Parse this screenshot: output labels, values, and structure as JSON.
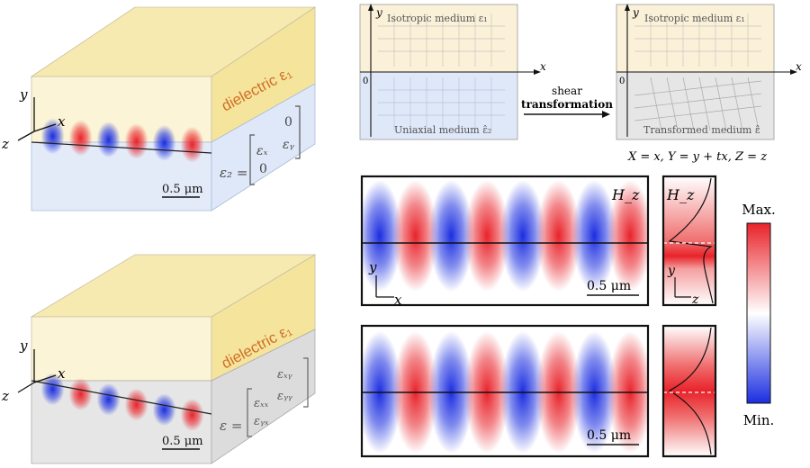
{
  "colors": {
    "field_max": "#e8232a",
    "field_min": "#1b2ee0",
    "dielectric_fill": "#f7eab0",
    "uniaxial_fill": "#dfe8f8",
    "transformed_fill": "#e4e4e4",
    "accent_text": "#d07028"
  },
  "top_block": {
    "dielectric_label": "dielectric ε₁",
    "eps_lhs": "ε₂ =",
    "m11": "εₓ",
    "m12": "0",
    "m21": "0",
    "m22": "εᵧ",
    "scale": "0.5 μm",
    "axis_y": "y",
    "axis_x": "x",
    "axis_z": "z"
  },
  "bottom_block": {
    "dielectric_label": "dielectric ε₁",
    "eps_lhs": "ε =",
    "m11": "εₓₓ",
    "m12": "εₓᵧ",
    "m21": "εᵧₓ",
    "m22": "εᵧᵧ",
    "scale": "0.5 μm",
    "axis_y": "y",
    "axis_x": "x",
    "axis_z": "z"
  },
  "transform": {
    "left_top_label": "Isotropic medium ε₁",
    "left_bottom_label": "Uniaxial medium ε̂₂",
    "right_top_label": "Isotropic medium ε₁",
    "right_bottom_label": "Transformed medium ε̂",
    "arrow_line1": "shear",
    "arrow_line2": "transformation",
    "equation": "X = x, Y = y + tx, Z = z",
    "axis_y": "y",
    "axis_x": "x",
    "origin": "0"
  },
  "field_top": {
    "label": "H_z",
    "profile_label": "H_z",
    "scale": "0.5 μm",
    "axis_y": "y",
    "axis_x": "x",
    "profile_axis_y": "y",
    "profile_axis_z": "z"
  },
  "field_bottom": {
    "scale": "0.5 μm"
  },
  "colorbar": {
    "max_label": "Max.",
    "min_label": "Min."
  }
}
